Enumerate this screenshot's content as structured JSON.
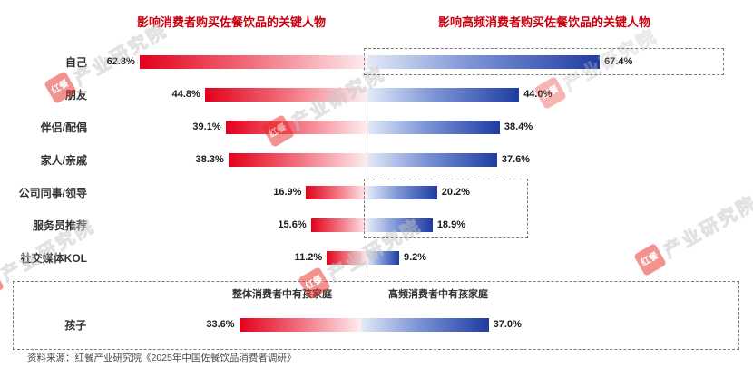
{
  "titles": {
    "left": "影响消费者购买佐餐饮品的关键人物",
    "right": "影响高频消费者购买佐餐饮品的关键人物"
  },
  "chart_data": {
    "type": "bar",
    "orientation": "horizontal-bidirectional",
    "categories": [
      "自己",
      "朋友",
      "伴侣/配偶",
      "家人/亲戚",
      "公司同事/领导",
      "服务员推荐",
      "社交媒体KOL"
    ],
    "series": [
      {
        "name": "影响消费者购买佐餐饮品的关键人物",
        "values": [
          62.8,
          44.8,
          39.1,
          38.3,
          16.9,
          15.6,
          11.2
        ],
        "color_outer": "#e3001b",
        "color_inner": "#fdeef0"
      },
      {
        "name": "影响高频消费者购买佐餐饮品的关键人物",
        "values": [
          67.4,
          44.0,
          38.4,
          37.6,
          20.2,
          18.9,
          9.2
        ],
        "color_outer": "#1e3ca2",
        "color_inner": "#e3eaf7"
      }
    ],
    "child_row": {
      "category": "孩子",
      "left_label": "整体消费者中有孩家庭",
      "right_label": "高频消费者中有孩家庭",
      "left_value": 33.6,
      "right_value": 37.0
    },
    "value_suffix": "%",
    "xlim_percent": [
      0,
      70
    ],
    "grid": false,
    "legend": false
  },
  "source": "资料来源：红餐产业研究院《2025年中国佐餐饮品消费者调研》",
  "watermark": {
    "logo": "红餐",
    "text": "产业研究院"
  },
  "colors": {
    "red": "#e3001b",
    "blue": "#1e3ca2",
    "title_red": "#c9000e"
  }
}
